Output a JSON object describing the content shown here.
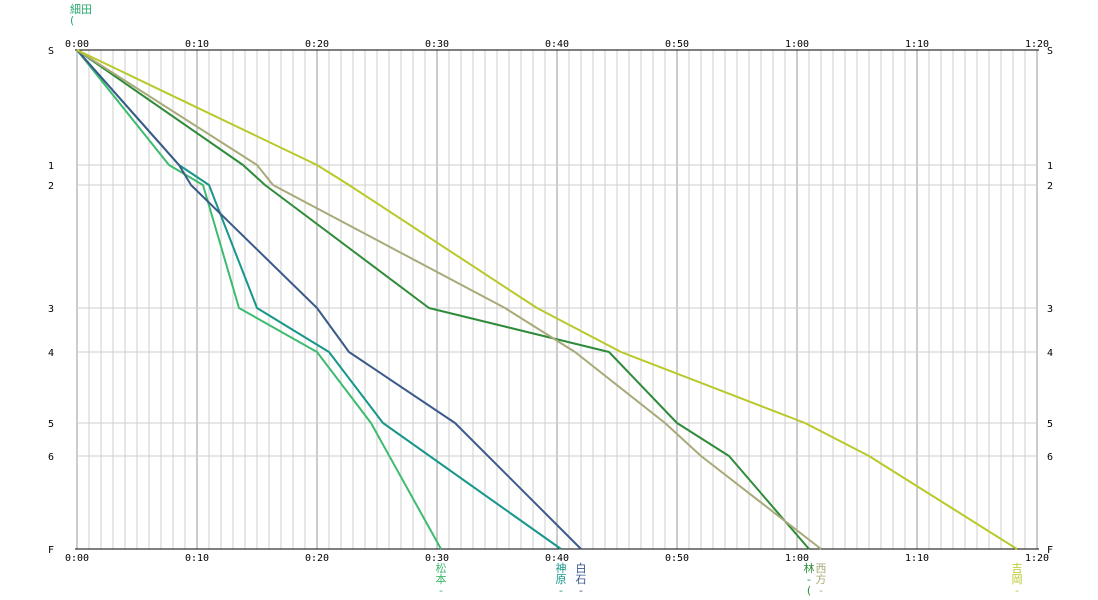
{
  "chart_data": {
    "type": "line",
    "title": "",
    "xlabel": "",
    "ylabel": "",
    "xlim": [
      "0:00",
      "1:20"
    ],
    "x_ticks": [
      "0:00",
      "0:10",
      "0:20",
      "0:30",
      "0:40",
      "0:50",
      "1:00",
      "1:10",
      "1:20"
    ],
    "y_points": [
      "S",
      "1",
      "2",
      "3",
      "4",
      "5",
      "6",
      "F"
    ],
    "grid": true,
    "legend": "runner names printed vertically at each line's end on the bottom axis",
    "top_label": {
      "text": "細田\n(",
      "color": "#2aa86e"
    },
    "series": [
      {
        "name": "松本\n-",
        "color": "#3dbb6e",
        "split_times": [
          "0:00",
          "0:07:40",
          "0:10:30",
          "0:13:30",
          "0:20:00",
          "0:24:30",
          "0:30:20"
        ]
      },
      {
        "name": "神原\n-",
        "color": "#17968a",
        "split_times": [
          "0:00",
          "0:08:30",
          "0:11:00",
          "0:15:00",
          "0:21:00",
          "0:25:30",
          "0:40:20"
        ]
      },
      {
        "name": "白石\n-",
        "color": "#3b5a8a",
        "split_times": [
          "0:00",
          "0:08:30",
          "0:09:30",
          "0:20:00",
          "0:22:40",
          "0:31:30",
          "0:42:00"
        ]
      },
      {
        "name": "林\n-\n(",
        "color": "#2e8b3a",
        "split_times": [
          "0:00",
          "0:13:50",
          "0:15:40",
          "0:29:20",
          "0:44:20",
          "0:50:00",
          "0:54:20",
          "1:01:00"
        ]
      },
      {
        "name": "西方\n-",
        "color": "#a9a97a",
        "split_times": [
          "0:00",
          "0:15:00",
          "0:16:20",
          "0:35:40",
          "0:41:30",
          "0:49:00",
          "0:52:00",
          "1:02:00"
        ]
      },
      {
        "name": "吉岡\n-",
        "color": "#b9c82a",
        "split_times": [
          "0:00",
          "0:20:00",
          "0:22:40",
          "0:38:20",
          "0:45:20",
          "1:00:40",
          "1:06:00",
          "1:18:20"
        ]
      }
    ]
  }
}
